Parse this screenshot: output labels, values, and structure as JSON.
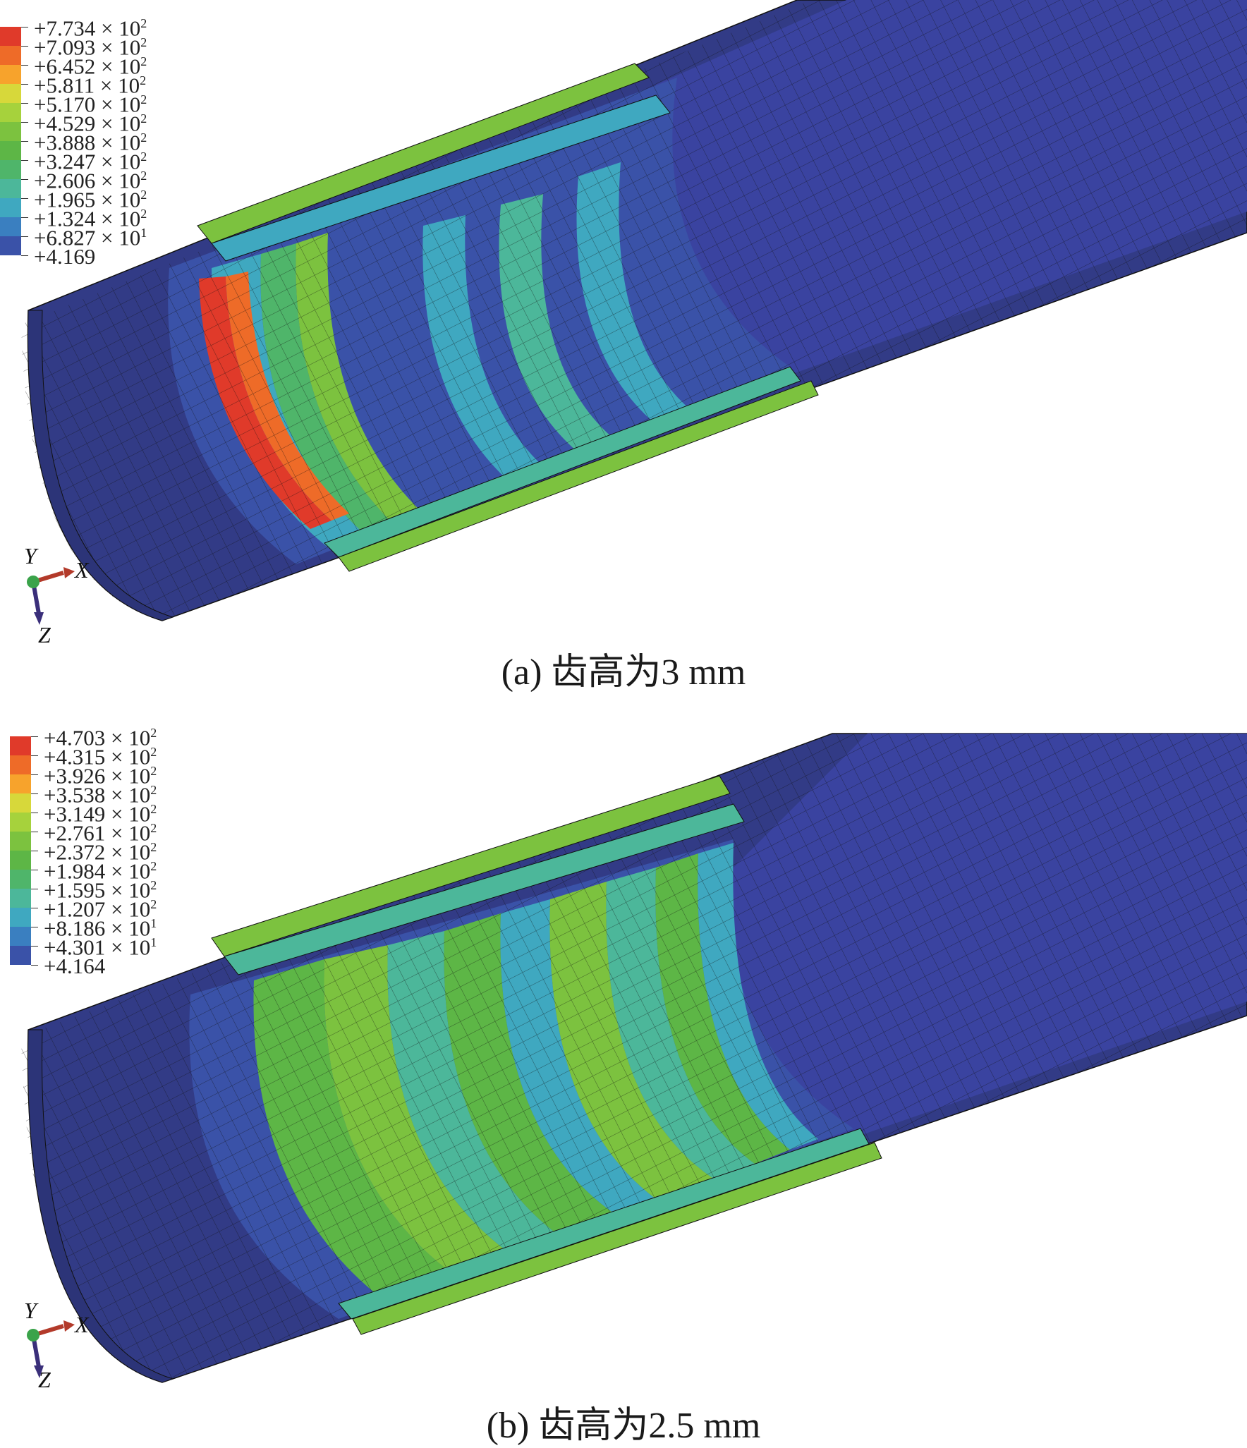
{
  "panels": [
    {
      "id": "a",
      "caption": "(a) 齿高为3 mm",
      "legend": [
        {
          "mantissa": "+7.734",
          "exp": "2",
          "color": "#e03a2a"
        },
        {
          "mantissa": "+7.093",
          "exp": "2",
          "color": "#ee6b28"
        },
        {
          "mantissa": "+6.452",
          "exp": "2",
          "color": "#f7a32c"
        },
        {
          "mantissa": "+5.811",
          "exp": "2",
          "color": "#d7d83a"
        },
        {
          "mantissa": "+5.170",
          "exp": "2",
          "color": "#a6d23c"
        },
        {
          "mantissa": "+4.529",
          "exp": "2",
          "color": "#7cc23f"
        },
        {
          "mantissa": "+3.888",
          "exp": "2",
          "color": "#5db646"
        },
        {
          "mantissa": "+3.247",
          "exp": "2",
          "color": "#4fb56a"
        },
        {
          "mantissa": "+2.606",
          "exp": "2",
          "color": "#4cb79a"
        },
        {
          "mantissa": "+1.965",
          "exp": "2",
          "color": "#3fa8c0"
        },
        {
          "mantissa": "+1.324",
          "exp": "2",
          "color": "#3a7fc0"
        },
        {
          "mantissa": "+6.827",
          "exp": "1",
          "color": "#3a52a8"
        },
        {
          "mantissa": "+4.169",
          "exp": "",
          "color": "#323b86"
        }
      ],
      "axes": {
        "y": "Y",
        "x": "X",
        "z": "Z"
      }
    },
    {
      "id": "b",
      "caption": "(b) 齿高为2.5 mm",
      "legend": [
        {
          "mantissa": "+4.703",
          "exp": "2",
          "color": "#e03a2a"
        },
        {
          "mantissa": "+4.315",
          "exp": "2",
          "color": "#ee6b28"
        },
        {
          "mantissa": "+3.926",
          "exp": "2",
          "color": "#f7a32c"
        },
        {
          "mantissa": "+3.538",
          "exp": "2",
          "color": "#d7d83a"
        },
        {
          "mantissa": "+3.149",
          "exp": "2",
          "color": "#a6d23c"
        },
        {
          "mantissa": "+2.761",
          "exp": "2",
          "color": "#7cc23f"
        },
        {
          "mantissa": "+2.372",
          "exp": "2",
          "color": "#5db646"
        },
        {
          "mantissa": "+1.984",
          "exp": "2",
          "color": "#4fb56a"
        },
        {
          "mantissa": "+1.595",
          "exp": "2",
          "color": "#4cb79a"
        },
        {
          "mantissa": "+1.207",
          "exp": "2",
          "color": "#3fa8c0"
        },
        {
          "mantissa": "+8.186",
          "exp": "1",
          "color": "#3a7fc0"
        },
        {
          "mantissa": "+4.301",
          "exp": "1",
          "color": "#3a52a8"
        },
        {
          "mantissa": "+4.164",
          "exp": "",
          "color": "#323b86"
        }
      ],
      "axes": {
        "y": "Y",
        "x": "X",
        "z": "Z"
      }
    }
  ],
  "colors": {
    "base": "#323b86",
    "mid": "#3a52a8",
    "hot": "#e03a2a",
    "mesh": "#111111"
  }
}
